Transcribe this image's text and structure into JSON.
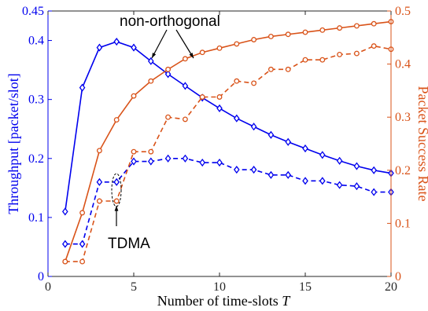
{
  "chart_data": {
    "type": "line",
    "xlabel": "Number of time-slots",
    "xlabel_var": "T",
    "ylabel_left": "Throughput [packet/slot]",
    "ylabel_right": "Packet Success Rate",
    "xlim": [
      0,
      20
    ],
    "ylim_left": [
      0,
      0.45
    ],
    "ylim_right": [
      0,
      0.5
    ],
    "x_ticks": [
      0,
      5,
      10,
      15,
      20
    ],
    "y_ticks_left": [
      0,
      0.1,
      0.2,
      0.3,
      0.4,
      0.45
    ],
    "y_ticks_left_labels": [
      "0",
      "0.1",
      "0.2",
      "0.3",
      "0.4",
      "0.45"
    ],
    "y_ticks_right": [
      0,
      0.1,
      0.2,
      0.3,
      0.4,
      0.5
    ],
    "y_ticks_right_labels": [
      "0",
      "0.1",
      "0.2",
      "0.3",
      "0.4",
      "0.5"
    ],
    "colors": {
      "left_axis": "#0000ee",
      "right_axis": "#d95319"
    },
    "grid": false,
    "series": [
      {
        "key": "thr_nonortho",
        "axis": "left",
        "color": "#0000ee",
        "dash": false,
        "marker": "diamond",
        "x": [
          1,
          2,
          3,
          4,
          5,
          6,
          7,
          8,
          9,
          10,
          11,
          12,
          13,
          14,
          15,
          16,
          17,
          18,
          19,
          20
        ],
        "values": [
          0.11,
          0.32,
          0.388,
          0.398,
          0.388,
          0.365,
          0.343,
          0.323,
          0.303,
          0.285,
          0.268,
          0.254,
          0.24,
          0.228,
          0.217,
          0.206,
          0.196,
          0.187,
          0.18,
          0.175
        ]
      },
      {
        "key": "thr_tdma",
        "axis": "left",
        "color": "#0000ee",
        "dash": true,
        "marker": "diamond",
        "x": [
          1,
          2,
          3,
          4,
          5,
          6,
          7,
          8,
          9,
          10,
          11,
          12,
          13,
          14,
          15,
          16,
          17,
          18,
          19,
          20
        ],
        "values": [
          0.055,
          0.055,
          0.16,
          0.16,
          0.195,
          0.195,
          0.2,
          0.2,
          0.193,
          0.193,
          0.181,
          0.181,
          0.172,
          0.172,
          0.162,
          0.162,
          0.155,
          0.153,
          0.143,
          0.143
        ]
      },
      {
        "key": "psr_nonortho",
        "axis": "right",
        "color": "#d95319",
        "dash": false,
        "marker": "circle",
        "x": [
          1,
          2,
          3,
          4,
          5,
          6,
          7,
          8,
          9,
          10,
          11,
          12,
          13,
          14,
          15,
          16,
          17,
          18,
          19,
          20
        ],
        "values": [
          0.028,
          0.12,
          0.237,
          0.295,
          0.34,
          0.368,
          0.39,
          0.41,
          0.422,
          0.43,
          0.438,
          0.446,
          0.452,
          0.456,
          0.46,
          0.464,
          0.468,
          0.472,
          0.476,
          0.48
        ]
      },
      {
        "key": "psr_tdma",
        "axis": "right",
        "color": "#d95319",
        "dash": true,
        "marker": "circle",
        "x": [
          1,
          2,
          3,
          4,
          5,
          6,
          7,
          8,
          9,
          10,
          11,
          12,
          13,
          14,
          15,
          16,
          17,
          18,
          19,
          20
        ],
        "values": [
          0.028,
          0.028,
          0.142,
          0.142,
          0.235,
          0.235,
          0.3,
          0.296,
          0.338,
          0.338,
          0.368,
          0.364,
          0.39,
          0.39,
          0.408,
          0.408,
          0.418,
          0.42,
          0.434,
          0.428
        ]
      }
    ],
    "annotations": [
      {
        "text": "non-orthogonal"
      },
      {
        "text": "TDMA"
      }
    ]
  }
}
